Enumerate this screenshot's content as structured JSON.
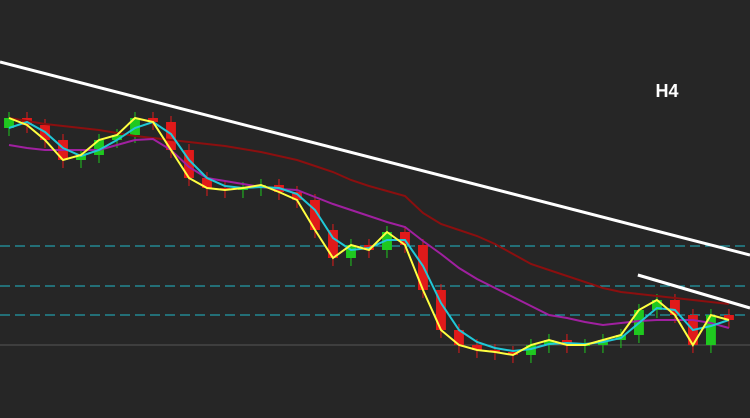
{
  "chart_data": {
    "type": "candlestick",
    "annotation": "H4",
    "background": "#262626",
    "up_color": "#1fc81f",
    "down_color": "#e01a1a",
    "xlim": [
      -0.5,
      41.17
    ],
    "ylim": [
      0,
      418
    ],
    "open": [
      290,
      300,
      293,
      278,
      258,
      263,
      278,
      283,
      300,
      296,
      268,
      240,
      230,
      228,
      230,
      233,
      226,
      218,
      188,
      160,
      173,
      168,
      186,
      173,
      128,
      88,
      73,
      68,
      66,
      63,
      73,
      78,
      73,
      73,
      78,
      83,
      108,
      118,
      103,
      73,
      103
    ],
    "high": [
      306,
      306,
      299,
      284,
      269,
      284,
      289,
      306,
      306,
      302,
      274,
      246,
      236,
      236,
      239,
      239,
      232,
      224,
      194,
      179,
      179,
      192,
      192,
      179,
      134,
      94,
      79,
      74,
      72,
      79,
      84,
      84,
      79,
      84,
      89,
      114,
      124,
      124,
      109,
      109,
      109
    ],
    "low": [
      282,
      285,
      270,
      250,
      250,
      255,
      270,
      275,
      288,
      260,
      232,
      222,
      220,
      220,
      222,
      218,
      210,
      180,
      152,
      152,
      160,
      160,
      165,
      120,
      80,
      65,
      60,
      58,
      55,
      55,
      65,
      65,
      65,
      65,
      70,
      75,
      100,
      95,
      65,
      65,
      90
    ],
    "close": [
      300,
      293,
      278,
      258,
      263,
      278,
      283,
      300,
      296,
      268,
      240,
      230,
      228,
      230,
      233,
      226,
      218,
      188,
      160,
      173,
      168,
      186,
      173,
      128,
      88,
      73,
      68,
      66,
      63,
      73,
      78,
      73,
      73,
      78,
      83,
      108,
      118,
      103,
      73,
      103,
      98
    ],
    "series": [
      {
        "color": "#8b0f0f",
        "values": [
          300,
          297,
          294,
          292,
          290,
          288,
          285,
          282,
          280,
          278,
          276,
          274,
          272,
          269,
          266,
          262,
          258,
          252,
          246,
          238,
          232,
          227,
          222,
          205,
          194,
          188,
          182,
          174,
          164,
          154,
          148,
          142,
          136,
          130,
          126,
          124,
          122,
          120,
          118,
          116,
          114
        ]
      },
      {
        "color": "#a020a0",
        "values": [
          273,
          270,
          268,
          268,
          268,
          268,
          273,
          278,
          279,
          268,
          251,
          240,
          237,
          234,
          231,
          229,
          228,
          221,
          214,
          208,
          202,
          196,
          191,
          177,
          164,
          150,
          139,
          130,
          121,
          112,
          103,
          100,
          96,
          93,
          95,
          97,
          98,
          98,
          98,
          95,
          90
        ]
      },
      {
        "color": "#20c8d8",
        "values": [
          290,
          296,
          286,
          270,
          262,
          268,
          278,
          290,
          296,
          284,
          258,
          240,
          232,
          230,
          231,
          230,
          224,
          208,
          180,
          168,
          170,
          178,
          178,
          152,
          115,
          88,
          76,
          70,
          67,
          69,
          74,
          75,
          74,
          76,
          80,
          95,
          110,
          108,
          88,
          92,
          98
        ]
      },
      {
        "color": "#ffff40",
        "values": [
          300,
          293,
          278,
          258,
          263,
          278,
          283,
          300,
          296,
          268,
          240,
          230,
          228,
          230,
          233,
          226,
          218,
          188,
          160,
          173,
          168,
          186,
          173,
          128,
          88,
          73,
          68,
          66,
          63,
          73,
          78,
          73,
          73,
          78,
          83,
          108,
          118,
          103,
          73,
          103,
          98
        ]
      }
    ],
    "levels": [
      {
        "value": 172,
        "color": "#20b8c8",
        "dashed": true
      },
      {
        "value": 132,
        "color": "#20b8c8",
        "dashed": true
      },
      {
        "value": 103,
        "color": "#20b8c8",
        "dashed": true
      },
      {
        "value": 73,
        "color": "#555555",
        "dashed": false
      }
    ],
    "trendlines": [
      {
        "x": [
          -0.5,
          41.17
        ],
        "y": [
          356,
          163
        ],
        "color": "#ffffff"
      },
      {
        "x": [
          34.94,
          41.17
        ],
        "y": [
          143,
          110
        ],
        "color": "#ffffff"
      }
    ]
  }
}
